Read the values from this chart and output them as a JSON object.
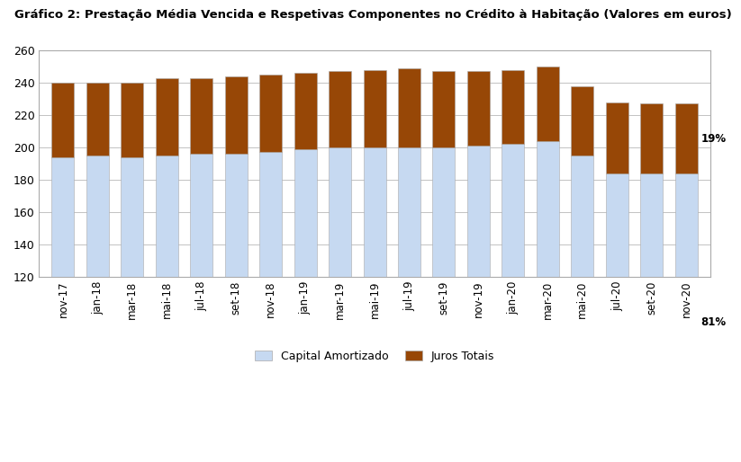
{
  "title": "Gráfico 2: Prestação Média Vencida e Respetivas Componentes no Crédito à Habitação (Valores em euros)",
  "categories": [
    "nov-17",
    "jan-18",
    "mar-18",
    "mai-18",
    "jul-18",
    "set-18",
    "nov-18",
    "jan-19",
    "mar-19",
    "mai-19",
    "jul-19",
    "set-19",
    "nov-19",
    "jan-20",
    "mar-20",
    "mai-20",
    "jul-20",
    "set-20",
    "nov-20"
  ],
  "capital": [
    194,
    195,
    194,
    195,
    196,
    196,
    197,
    199,
    200,
    200,
    200,
    200,
    201,
    202,
    204,
    195,
    184,
    184,
    184
  ],
  "juros": [
    46,
    45,
    46,
    48,
    47,
    48,
    48,
    47,
    47,
    48,
    49,
    47,
    46,
    46,
    46,
    43,
    44,
    43,
    43
  ],
  "capital_color": "#c6d9f1",
  "juros_color": "#974706",
  "ylim_min": 120,
  "ylim_max": 260,
  "yticks": [
    120,
    140,
    160,
    180,
    200,
    220,
    240,
    260
  ],
  "annotation_pct_juros": "19%",
  "annotation_pct_capital": "81%",
  "legend_capital": "Capital Amortizado",
  "legend_juros": "Juros Totais",
  "background_color": "#ffffff",
  "grid_color": "#aaaaaa",
  "border_color": "#aaaaaa"
}
